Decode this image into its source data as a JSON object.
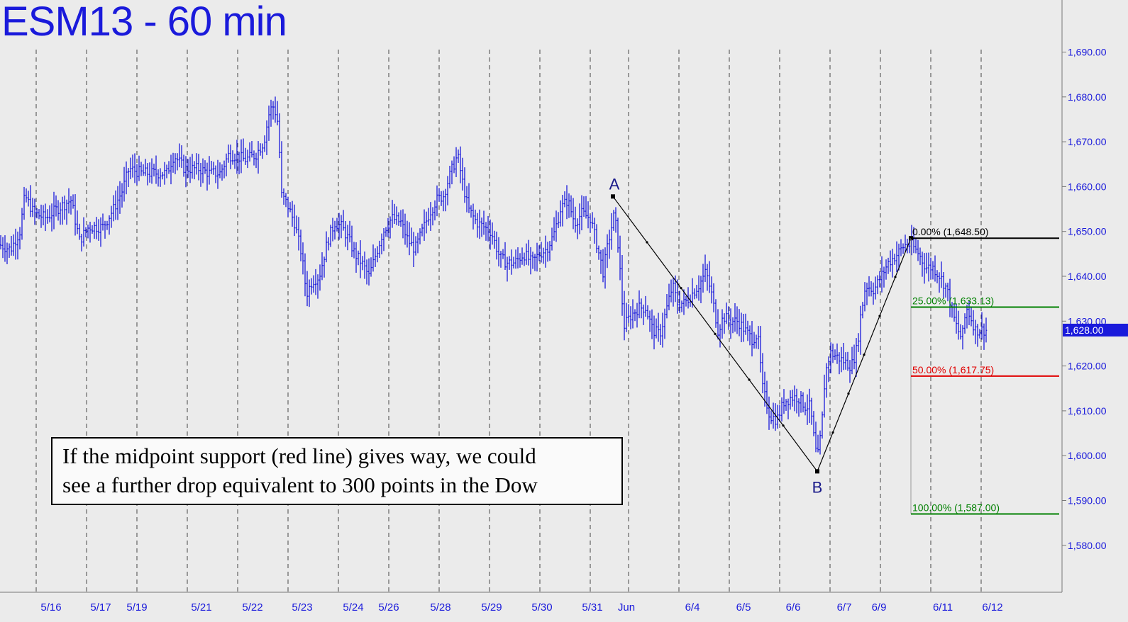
{
  "title": "ESM13 - 60 min",
  "annotation": {
    "line1": "If the midpoint support (red line) gives way, we could",
    "line2": "see a further drop equivalent to 300 points in the Dow"
  },
  "colors": {
    "background": "#ebebeb",
    "bars": "#1a1adb",
    "title": "#1a1adb",
    "fib_0": "#000000",
    "fib_25": "#008000",
    "fib_50": "#e00000",
    "fib_100": "#008000",
    "last_price_bg": "#1a1adb"
  },
  "chart_data": {
    "type": "ohlc",
    "instrument": "ESM13",
    "timeframe": "60 min",
    "ylim": [
      1573,
      1699
    ],
    "y_ticks": [
      1580,
      1590,
      1600,
      1610,
      1620,
      1630,
      1640,
      1650,
      1660,
      1670,
      1680,
      1690
    ],
    "y_tick_labels": [
      "1,580.00",
      "1,590.00",
      "1,600.00",
      "1,610.00",
      "1,620.00",
      "1,630.00",
      "1,640.00",
      "1,650.00",
      "1,660.00",
      "1,670.00",
      "1,680.00",
      "1,690.00"
    ],
    "x_labels": [
      "5/16",
      "5/17",
      "5/19",
      "5/21",
      "5/22",
      "5/23",
      "5/24",
      "5/26",
      "5/28",
      "5/29",
      "5/30",
      "5/31",
      "Jun",
      "6/4",
      "6/5",
      "6/6",
      "6/7",
      "6/9",
      "6/11",
      "6/12"
    ],
    "grid": "vertical dashed at session boundaries",
    "last_price": 1628.0,
    "last_price_label": "1,628.00",
    "close_path": [
      [
        0,
        1647
      ],
      [
        15,
        1646
      ],
      [
        28,
        1650
      ],
      [
        35,
        1658
      ],
      [
        48,
        1654
      ],
      [
        65,
        1653
      ],
      [
        80,
        1655
      ],
      [
        100,
        1657
      ],
      [
        112,
        1648
      ],
      [
        125,
        1651
      ],
      [
        145,
        1651
      ],
      [
        160,
        1655
      ],
      [
        172,
        1659
      ],
      [
        182,
        1664
      ],
      [
        200,
        1663
      ],
      [
        220,
        1663
      ],
      [
        235,
        1663
      ],
      [
        245,
        1667
      ],
      [
        260,
        1664
      ],
      [
        280,
        1664
      ],
      [
        295,
        1663
      ],
      [
        310,
        1663
      ],
      [
        322,
        1667
      ],
      [
        330,
        1667
      ],
      [
        345,
        1666
      ],
      [
        360,
        1667
      ],
      [
        372,
        1670
      ],
      [
        380,
        1677
      ],
      [
        386,
        1678
      ],
      [
        392,
        1674
      ],
      [
        397,
        1658
      ],
      [
        405,
        1656
      ],
      [
        415,
        1652
      ],
      [
        425,
        1645
      ],
      [
        432,
        1636
      ],
      [
        440,
        1639
      ],
      [
        450,
        1640
      ],
      [
        462,
        1648
      ],
      [
        472,
        1652
      ],
      [
        482,
        1651
      ],
      [
        492,
        1648
      ],
      [
        500,
        1645
      ],
      [
        510,
        1643
      ],
      [
        520,
        1640
      ],
      [
        530,
        1645
      ],
      [
        540,
        1650
      ],
      [
        552,
        1653
      ],
      [
        565,
        1652
      ],
      [
        575,
        1648
      ],
      [
        585,
        1646
      ],
      [
        595,
        1650
      ],
      [
        605,
        1654
      ],
      [
        615,
        1657
      ],
      [
        625,
        1658
      ],
      [
        635,
        1663
      ],
      [
        645,
        1667
      ],
      [
        652,
        1661
      ],
      [
        660,
        1655
      ],
      [
        672,
        1652
      ],
      [
        682,
        1651
      ],
      [
        692,
        1650
      ],
      [
        705,
        1644
      ],
      [
        715,
        1643
      ],
      [
        725,
        1643
      ],
      [
        738,
        1645
      ],
      [
        750,
        1643
      ],
      [
        760,
        1645
      ],
      [
        770,
        1646
      ],
      [
        780,
        1649
      ],
      [
        790,
        1655
      ],
      [
        800,
        1657
      ],
      [
        810,
        1652
      ],
      [
        820,
        1654
      ],
      [
        832,
        1653
      ],
      [
        840,
        1648
      ],
      [
        850,
        1641
      ],
      [
        858,
        1648
      ],
      [
        866,
        1654
      ],
      [
        872,
        1646
      ],
      [
        876,
        1636
      ],
      [
        880,
        1629
      ],
      [
        888,
        1631
      ],
      [
        900,
        1633
      ],
      [
        910,
        1633
      ],
      [
        920,
        1628
      ],
      [
        930,
        1627
      ],
      [
        940,
        1633
      ],
      [
        948,
        1638
      ],
      [
        955,
        1634
      ],
      [
        965,
        1634
      ],
      [
        975,
        1636
      ],
      [
        985,
        1638
      ],
      [
        995,
        1641
      ],
      [
        1003,
        1636
      ],
      [
        1012,
        1628
      ],
      [
        1020,
        1631
      ],
      [
        1030,
        1630
      ],
      [
        1040,
        1630
      ],
      [
        1050,
        1628
      ],
      [
        1060,
        1626
      ],
      [
        1068,
        1627
      ],
      [
        1075,
        1615
      ],
      [
        1085,
        1609
      ],
      [
        1095,
        1608
      ],
      [
        1105,
        1612
      ],
      [
        1115,
        1613
      ],
      [
        1125,
        1613
      ],
      [
        1135,
        1611
      ],
      [
        1142,
        1611
      ],
      [
        1148,
        1603
      ],
      [
        1152,
        1599
      ],
      [
        1158,
        1606
      ],
      [
        1163,
        1618
      ],
      [
        1170,
        1623
      ],
      [
        1180,
        1622
      ],
      [
        1190,
        1621
      ],
      [
        1200,
        1620
      ],
      [
        1208,
        1624
      ],
      [
        1213,
        1631
      ],
      [
        1220,
        1638
      ],
      [
        1232,
        1637
      ],
      [
        1242,
        1640
      ],
      [
        1252,
        1643
      ],
      [
        1265,
        1645
      ],
      [
        1275,
        1647
      ],
      [
        1285,
        1647
      ],
      [
        1295,
        1645
      ],
      [
        1305,
        1642
      ],
      [
        1315,
        1642
      ],
      [
        1325,
        1640
      ],
      [
        1335,
        1637
      ],
      [
        1342,
        1632
      ],
      [
        1350,
        1628
      ],
      [
        1356,
        1626
      ],
      [
        1362,
        1633
      ],
      [
        1368,
        1631
      ],
      [
        1375,
        1628
      ],
      [
        1382,
        1628
      ],
      [
        1390,
        1628
      ]
    ],
    "wave": {
      "points": [
        {
          "label": "A",
          "x": 864,
          "price": 1657.8
        },
        {
          "label": "B",
          "x": 1152,
          "price": 1596.5
        },
        {
          "label": "",
          "x": 1284,
          "price": 1648.5
        }
      ]
    },
    "fib_levels": [
      {
        "label": "0.00% (1,648.50)",
        "price": 1648.5,
        "color": "#000000"
      },
      {
        "label": "25.00% (1,633.13)",
        "price": 1633.13,
        "color": "#008000"
      },
      {
        "label": "50.00% (1,617.75)",
        "price": 1617.75,
        "color": "#e00000"
      },
      {
        "label": "100.00% (1,587.00)",
        "price": 1587.0,
        "color": "#008000"
      }
    ]
  }
}
